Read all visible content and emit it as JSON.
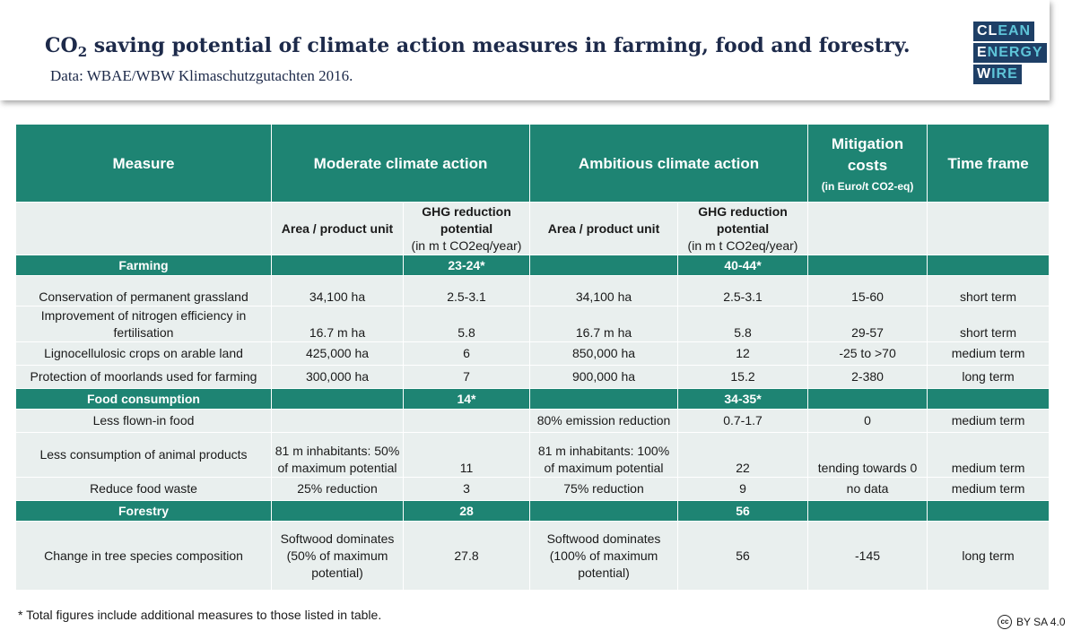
{
  "header": {
    "title_pre": "CO",
    "title_sub": "2",
    "title_post": " saving potential of climate action measures in farming, food and forestry.",
    "source": "Data: WBAE/WBW Klimaschutzgutachten 2016."
  },
  "logo": {
    "line1_a": "CL",
    "line1_b": "EAN",
    "line2_a": "E",
    "line2_b": "NERGY",
    "line3_a": "W",
    "line3_b": "IRE"
  },
  "table": {
    "headers": {
      "measure": "Measure",
      "moderate": "Moderate climate action",
      "ambitious": "Ambitious climate action",
      "mitigation_line1": "Mitigation",
      "mitigation_line2": "costs",
      "mitigation_unit": "(in Euro/t CO2-eq)",
      "time_frame": "Time frame"
    },
    "subheaders": {
      "area_mod": "Area / product unit",
      "ghg_mod_line1": "GHG reduction",
      "ghg_mod_line2": "potential",
      "ghg_mod_unit": "(in m t CO2eq/year)",
      "area_amb": "Area / product unit",
      "ghg_amb_line1": "GHG reduction",
      "ghg_amb_line2": "potential",
      "ghg_amb_unit": "(in m t CO2eq/year)"
    },
    "farming": {
      "label": "Farming",
      "mod_total": "23-24*",
      "amb_total": "40-44*",
      "rows": [
        {
          "measure": "Conservation of permanent grassland",
          "area_mod": "34,100 ha",
          "ghg_mod": "2.5-3.1",
          "area_amb": "34,100 ha",
          "ghg_amb": "2.5-3.1",
          "cost": "15-60",
          "time": "short term"
        },
        {
          "measure_line1": "Improvement of nitrogen efficiency in",
          "measure_line2": "fertilisation",
          "area_mod": "16.7 m ha",
          "ghg_mod": "5.8",
          "area_amb": "16.7 m ha",
          "ghg_amb": "5.8",
          "cost": "29-57",
          "time": "short term"
        },
        {
          "measure": "Lignocellulosic crops on arable land",
          "area_mod": "425,000 ha",
          "ghg_mod": "6",
          "area_amb": "850,000 ha",
          "ghg_amb": "12",
          "cost": "-25 to >70",
          "time": "medium term"
        },
        {
          "measure": "Protection of moorlands used for farming",
          "area_mod": "300,000 ha",
          "ghg_mod": "7",
          "area_amb": "900,000 ha",
          "ghg_amb": "15.2",
          "cost": "2-380",
          "time": "long term"
        }
      ]
    },
    "food": {
      "label": "Food consumption",
      "mod_total": "14*",
      "amb_total": "34-35*",
      "rows": [
        {
          "measure": "Less flown-in food",
          "area_mod": "",
          "ghg_mod": "",
          "area_amb": "80% emission reduction",
          "ghg_amb": "0.7-1.7",
          "cost": "0",
          "time": "medium term"
        },
        {
          "measure": "Less consumption of animal products",
          "area_mod_line1": "81 m inhabitants: 50%",
          "area_mod_line2": "of maximum potential",
          "ghg_mod": "11",
          "area_amb_line1": "81 m inhabitants: 100%",
          "area_amb_line2": "of maximum potential",
          "ghg_amb": "22",
          "cost": "tending towards 0",
          "time": "medium term"
        },
        {
          "measure": "Reduce food waste",
          "area_mod": "25% reduction",
          "ghg_mod": "3",
          "area_amb": "75% reduction",
          "ghg_amb": "9",
          "cost": "no data",
          "time": "medium term"
        }
      ]
    },
    "forestry": {
      "label": "Forestry",
      "mod_total": "28",
      "amb_total": "56",
      "rows": [
        {
          "measure": "Change in tree species composition",
          "area_mod_line1": "Softwood dominates",
          "area_mod_line2": "(50% of maximum",
          "area_mod_line3": "potential)",
          "ghg_mod": "27.8",
          "area_amb_line1": "Softwood dominates",
          "area_amb_line2": "(100% of maximum",
          "area_amb_line3": "potential)",
          "ghg_amb": "56",
          "cost": "-145",
          "time": "long term"
        }
      ]
    }
  },
  "footnote": "* Total figures include additional measures to those listed in table.",
  "license": {
    "cc": "cc",
    "text": "BY SA 4.0"
  }
}
